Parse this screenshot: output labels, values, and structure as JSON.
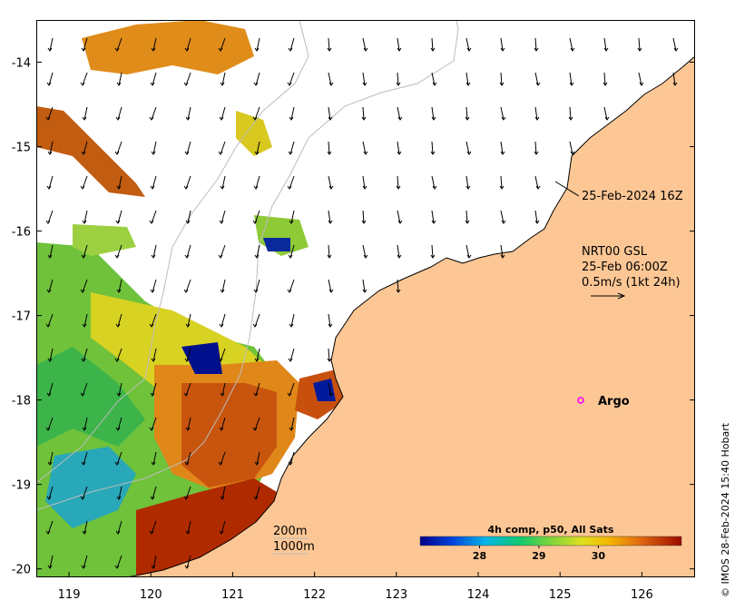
{
  "map": {
    "lon_ticks": [
      "119",
      "120",
      "121",
      "122",
      "123",
      "124",
      "125",
      "126"
    ],
    "lat_ticks": [
      "-14",
      "-15",
      "-16",
      "-17",
      "-18",
      "-19",
      "-20"
    ],
    "lon_range": [
      118.6,
      126.65
    ],
    "lat_range": [
      -13.5,
      -20.1
    ]
  },
  "annotations": {
    "track_date": "25-Feb-2024 16Z",
    "current_product": "NRT00 GSL",
    "current_time": "25-Feb 06:00Z",
    "current_scale": "0.5m/s (1kt 24h)",
    "argo_label": "Argo"
  },
  "isobaths": {
    "shallow": "200m",
    "deep": "1000m"
  },
  "colorbar": {
    "title": "4h comp, p50, All Sats",
    "ticks": [
      "28",
      "29",
      "30"
    ],
    "range": [
      27.0,
      31.4
    ]
  },
  "credit": "© IMOS 28-Feb-2024 15:40 Hobart",
  "colors": {
    "land": "#fdc795",
    "coast": "#000000",
    "sst_warm": "#b02a00",
    "sst_mid": "#e98a12",
    "sst_cool": "#8ec936",
    "argo_marker": "#ff00ff"
  }
}
